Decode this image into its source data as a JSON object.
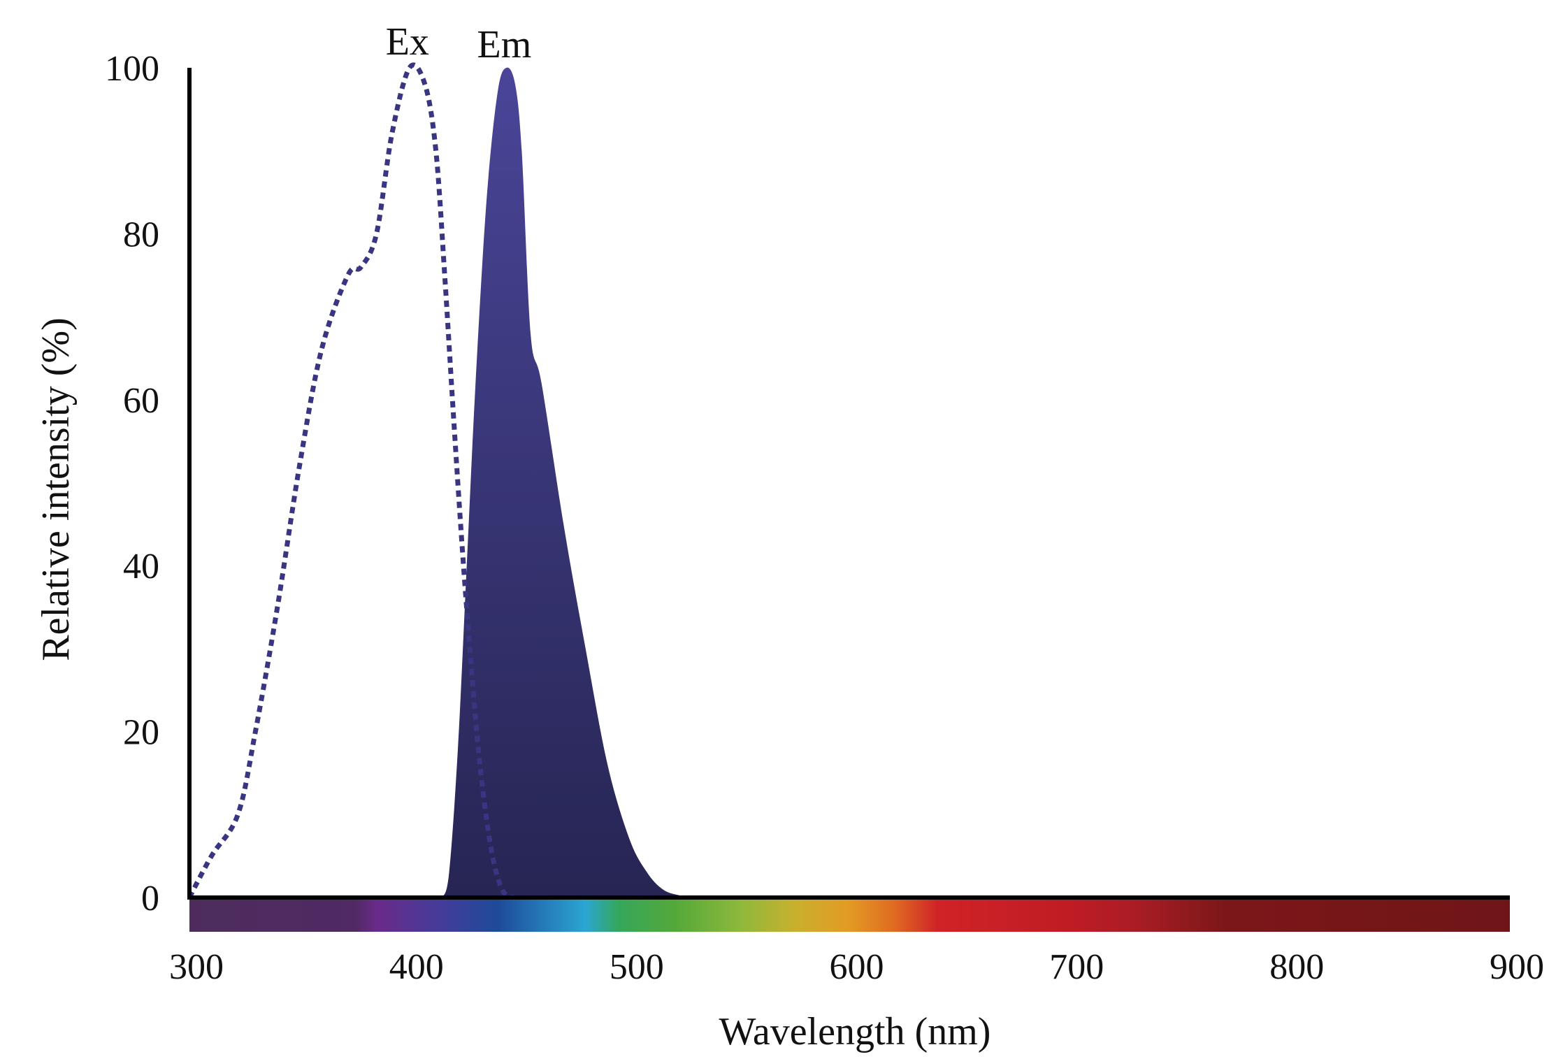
{
  "chart_data": {
    "type": "area",
    "title": "",
    "xlabel": "Wavelength (nm)",
    "ylabel": "Relative intensity (%)",
    "xlim": [
      300,
      900
    ],
    "ylim": [
      0,
      100
    ],
    "x_ticks": [
      300,
      400,
      500,
      600,
      700,
      800,
      900
    ],
    "y_ticks": [
      0,
      20,
      40,
      60,
      80,
      100
    ],
    "grid": false,
    "legend": "none",
    "series": [
      {
        "name": "Ex",
        "style": "dotted-line",
        "color": "#3a3580",
        "x": [
          300,
          310,
          322,
          330,
          340,
          350,
          360,
          372,
          378,
          385,
          392,
          400,
          407,
          412,
          416,
          420,
          424,
          428,
          432,
          437,
          442,
          447
        ],
        "y": [
          0,
          5,
          10,
          20,
          35,
          52,
          66,
          75,
          76,
          80,
          92,
          100,
          98,
          90,
          75,
          58,
          42,
          28,
          16,
          6,
          1,
          0
        ]
      },
      {
        "name": "Em",
        "style": "filled-area",
        "color": "#2e2c6a",
        "color_top": "#4a4598",
        "color_bottom": "#262553",
        "x": [
          415,
          418,
          422,
          426,
          430,
          435,
          440,
          444,
          448,
          451,
          455,
          460,
          470,
          480,
          490,
          500,
          508,
          515,
          522,
          530
        ],
        "y": [
          0,
          3,
          18,
          40,
          62,
          84,
          97,
          100,
          98,
          90,
          68,
          62,
          45,
          30,
          16,
          7,
          3,
          1,
          0.3,
          0
        ]
      }
    ],
    "spectrum_bar": {
      "stops": [
        {
          "wl": 300,
          "color": "#4d2c5d"
        },
        {
          "wl": 375,
          "color": "#4f2a63"
        },
        {
          "wl": 385,
          "color": "#6a2a8a"
        },
        {
          "wl": 410,
          "color": "#4a3a98"
        },
        {
          "wl": 440,
          "color": "#1e4a9a"
        },
        {
          "wl": 480,
          "color": "#2aa6d2"
        },
        {
          "wl": 495,
          "color": "#35a75b"
        },
        {
          "wl": 520,
          "color": "#53a83a"
        },
        {
          "wl": 550,
          "color": "#8db83c"
        },
        {
          "wl": 575,
          "color": "#c8b02e"
        },
        {
          "wl": 600,
          "color": "#e39a24"
        },
        {
          "wl": 620,
          "color": "#e06b22"
        },
        {
          "wl": 640,
          "color": "#cf2327"
        },
        {
          "wl": 700,
          "color": "#c01c24"
        },
        {
          "wl": 730,
          "color": "#a91d25"
        },
        {
          "wl": 770,
          "color": "#7c1719"
        },
        {
          "wl": 900,
          "color": "#6f1518"
        }
      ]
    }
  }
}
